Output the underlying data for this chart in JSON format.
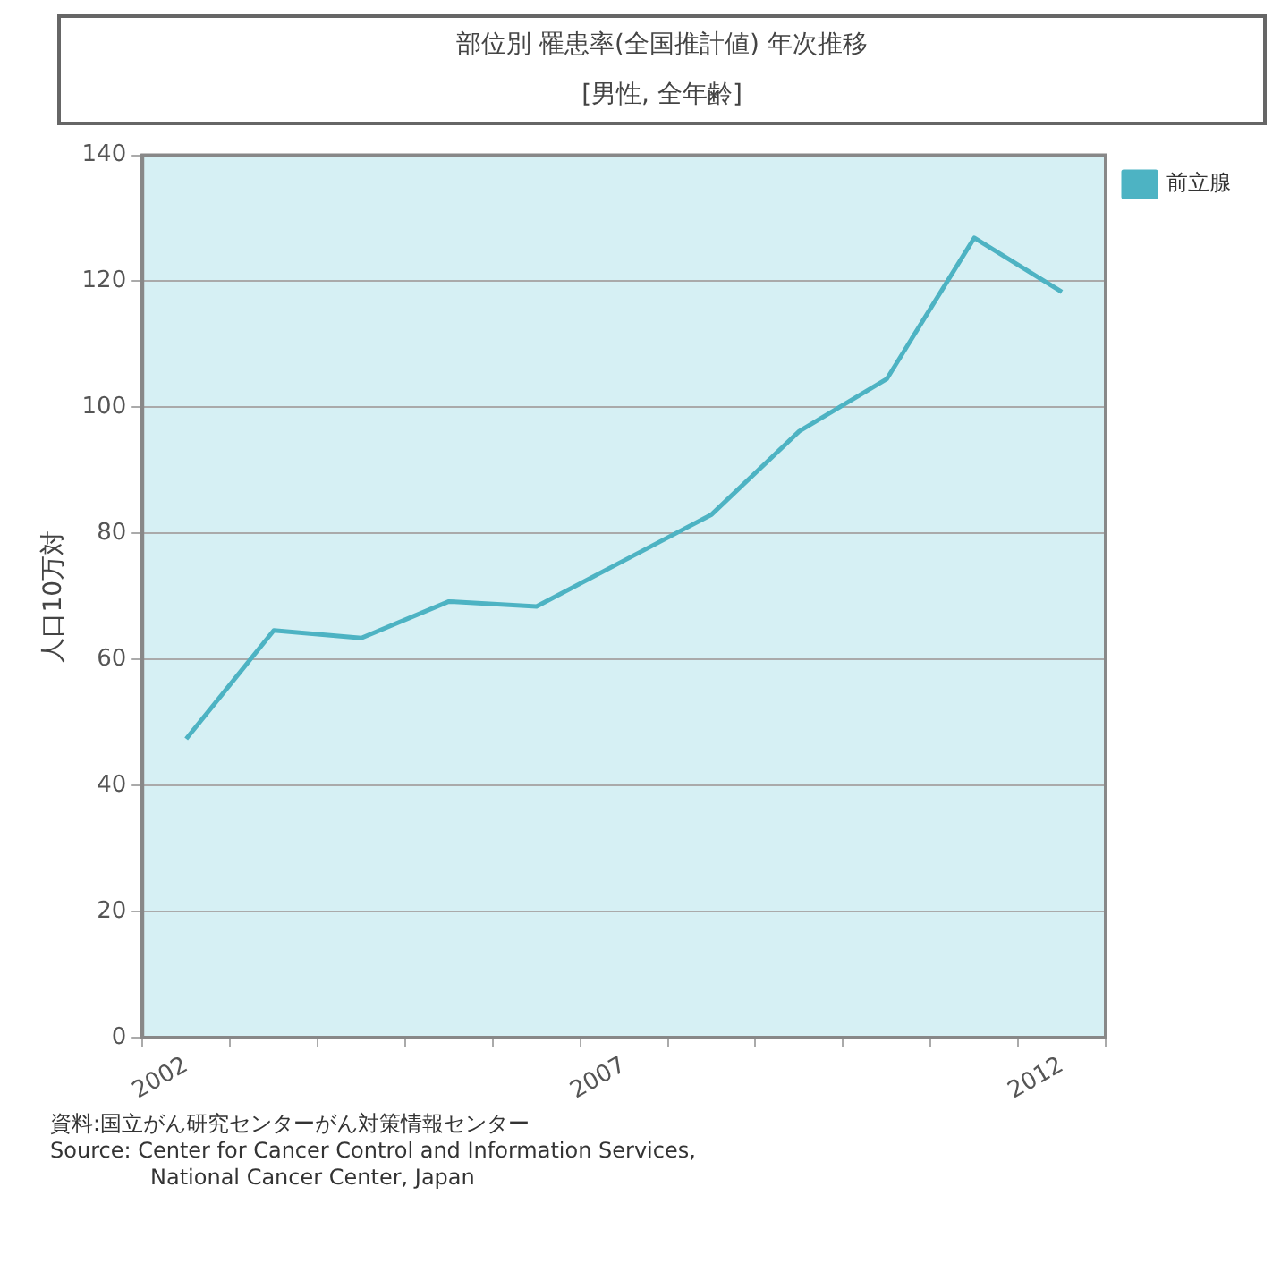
{
  "chart_data": {
    "type": "line",
    "title": "部位別 罹患率(全国推計値) 年次推移",
    "subtitle": "[男性, 全年齢]",
    "ylabel": "人口10万対",
    "categories": [
      "2002",
      null,
      null,
      null,
      null,
      "2007",
      null,
      null,
      null,
      null,
      "2012"
    ],
    "series": [
      {
        "name": "前立腺",
        "color": "#4db3c3",
        "values": [
          47.4,
          64.6,
          63.4,
          69.2,
          68.4,
          75.7,
          83.0,
          96.2,
          104.5,
          126.9,
          118.3
        ]
      }
    ],
    "ylim": [
      0,
      140
    ],
    "yticks": [
      0,
      20,
      40,
      60,
      80,
      100,
      120,
      140
    ],
    "grid": "y",
    "legend": "top right",
    "marker": "none",
    "line_style": "solid",
    "annotations": [
      "資料:国立がん研究センターがん対策情報センター",
      "Source: Center for Cancer Control and Information Services,",
      "National Cancer Center, Japan"
    ]
  }
}
